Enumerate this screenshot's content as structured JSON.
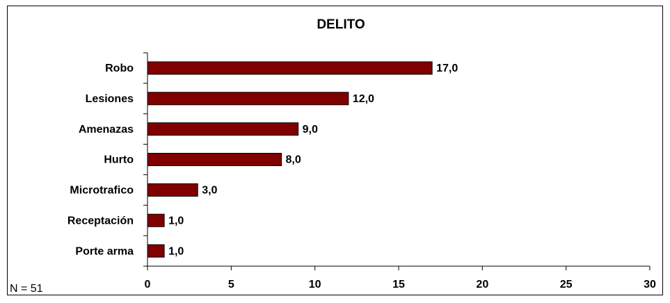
{
  "chart_data": {
    "type": "bar",
    "orientation": "horizontal",
    "title": "DELITO",
    "categories": [
      "Robo",
      "Lesiones",
      "Amenazas",
      "Hurto",
      "Microtrafico",
      "Receptación",
      "Porte arma"
    ],
    "values": [
      17,
      12,
      9,
      8,
      3,
      1,
      1
    ],
    "value_labels": [
      "17,0",
      "12,0",
      "9,0",
      "8,0",
      "3,0",
      "1,0",
      "1,0"
    ],
    "color": "#800000",
    "xlim": [
      0,
      30
    ],
    "xticks": [
      0,
      5,
      10,
      15,
      20,
      25,
      30
    ],
    "annotation": "N = 51"
  }
}
